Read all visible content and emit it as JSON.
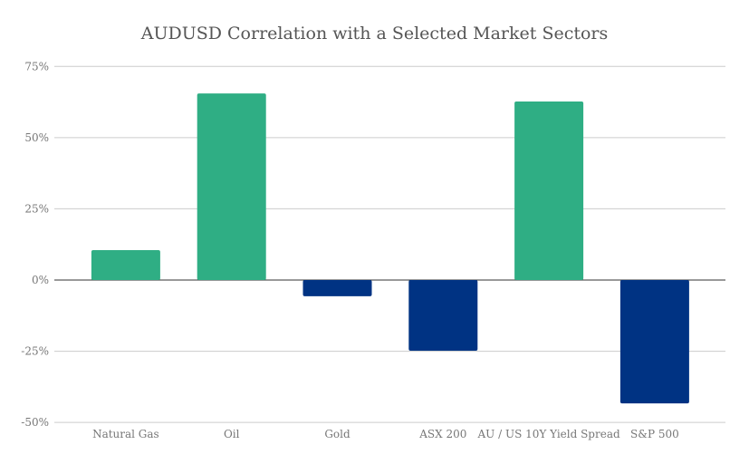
{
  "chart_data": {
    "type": "bar",
    "title": "AUDUSD Correlation with a Selected Market Sectors",
    "categories": [
      "Natural Gas",
      "Oil",
      "Gold",
      "ASX 200",
      "AU / US 10Y Yield Spread",
      "S&P 500"
    ],
    "values": [
      10.5,
      65.5,
      -5.7,
      -24.8,
      62.7,
      -43.3
    ],
    "value_unit": "%",
    "xlabel": "",
    "ylabel": "",
    "ylim": [
      -50,
      75
    ],
    "yticks": [
      75,
      50,
      25,
      0,
      -25,
      -50
    ],
    "ytick_labels": [
      "75%",
      "50%",
      "25%",
      "0%",
      "-25%",
      "-50%"
    ],
    "grid": true,
    "legend": "none",
    "colors": {
      "positive": "#2fae84",
      "negative": "#003383",
      "grid": "#cccccc",
      "zero_line": "#333333"
    }
  }
}
